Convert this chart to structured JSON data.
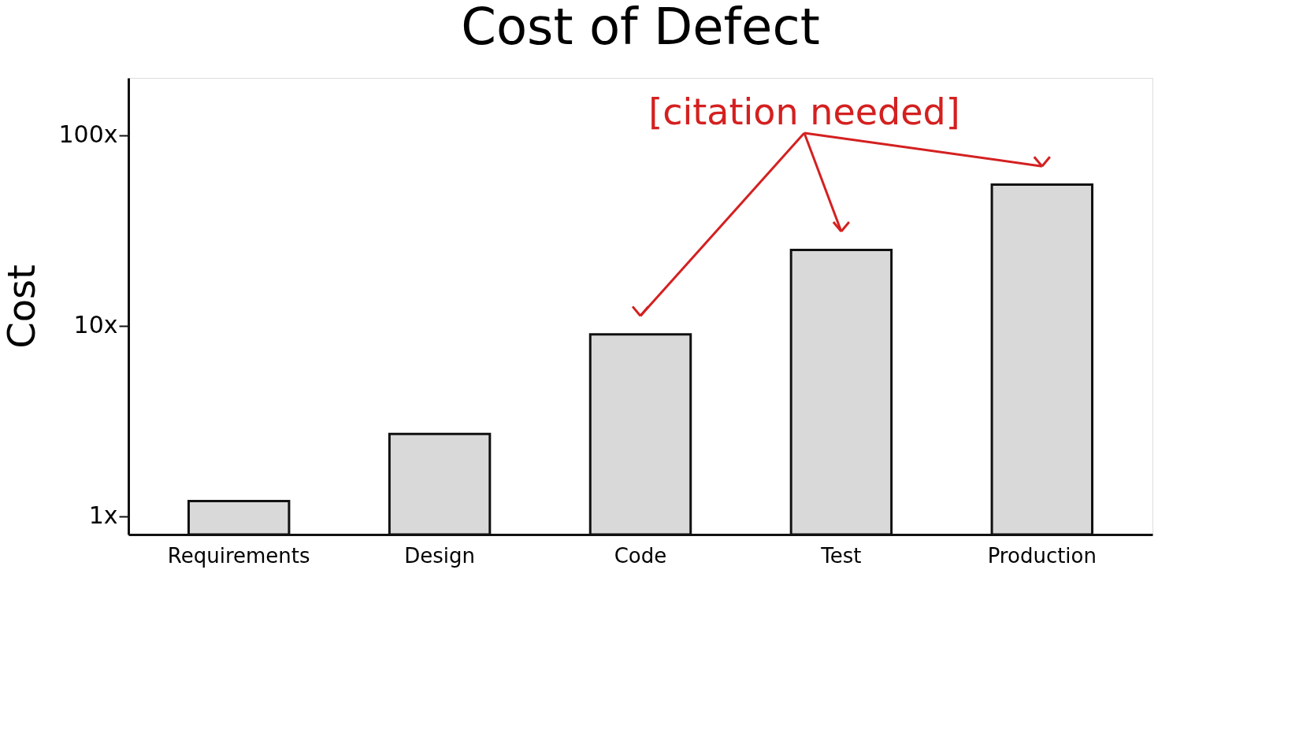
{
  "chart_data": {
    "type": "bar",
    "title": "Cost of Defect",
    "ylabel": "Cost",
    "categories": [
      "Requirements",
      "Design",
      "Code",
      "Test",
      "Production"
    ],
    "values": [
      1.2,
      2.7,
      9,
      25,
      55
    ],
    "color": "#d9d9d9",
    "log": true,
    "ylim": [
      0.8,
      200
    ],
    "yticks": [
      {
        "value": 1,
        "label": "1x"
      },
      {
        "value": 10,
        "label": "10x"
      },
      {
        "value": 100,
        "label": "100x"
      }
    ],
    "grid": false,
    "annotations": [
      "[citation needed]"
    ]
  }
}
